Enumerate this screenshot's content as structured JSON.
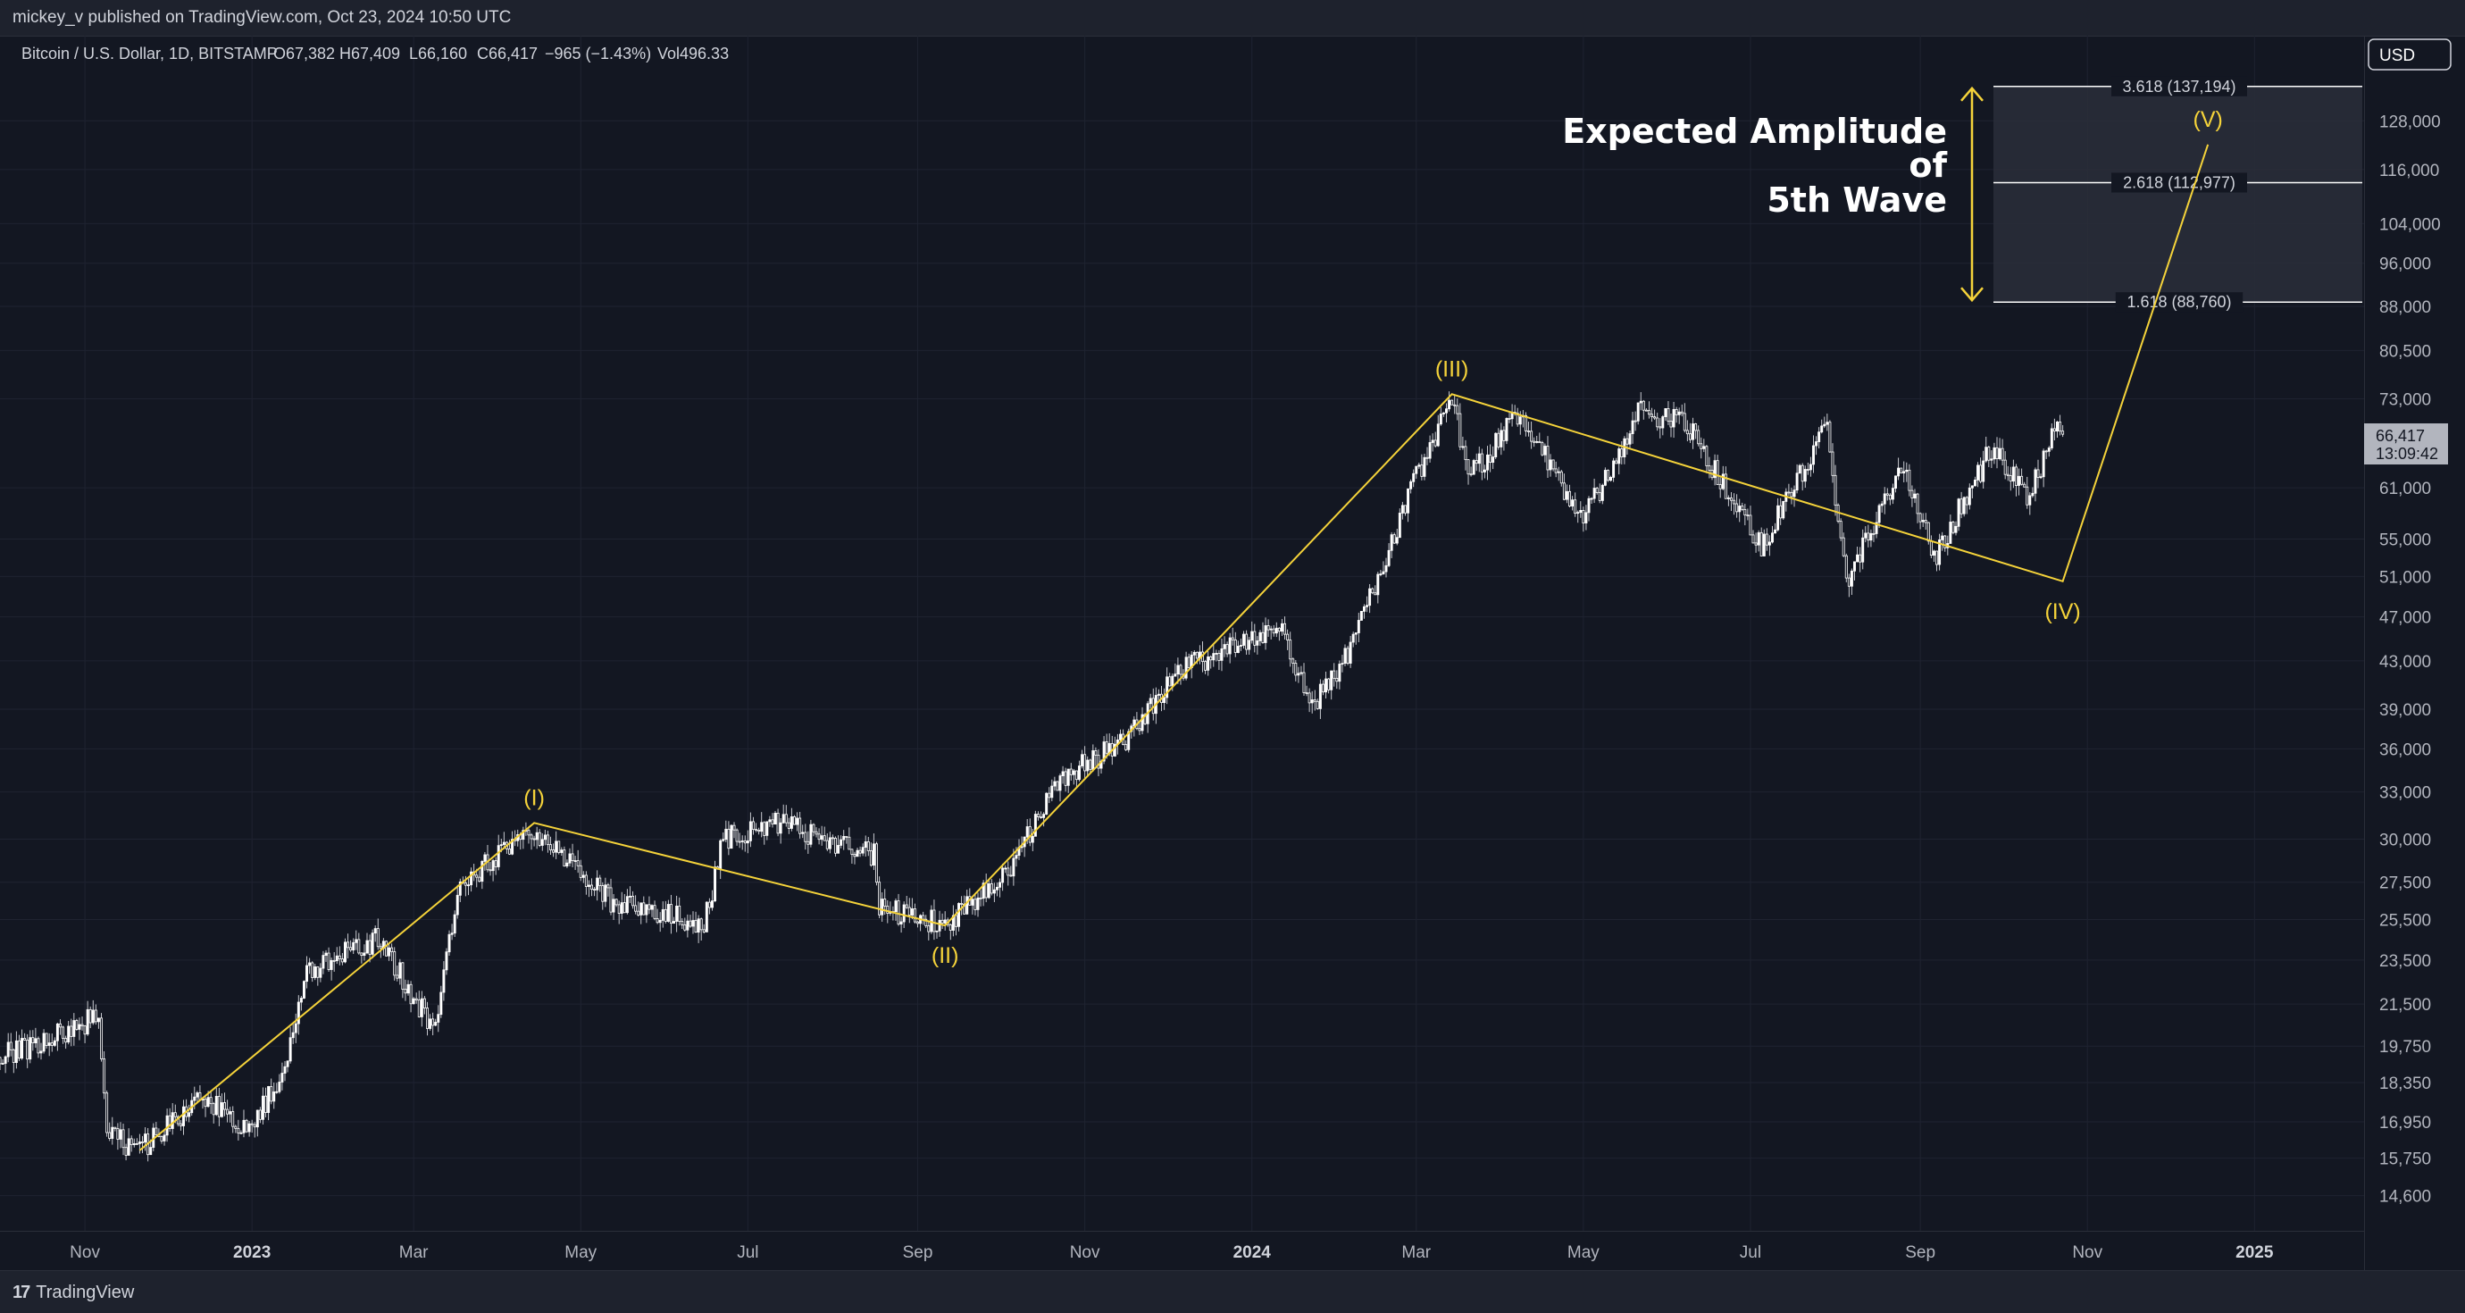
{
  "header": {
    "published_line": "mickey_v published on TradingView.com, Oct 23, 2024 10:50 UTC"
  },
  "legend": {
    "symbol": "Bitcoin / U.S. Dollar, 1D, BITSTAMP",
    "open": "O67,382",
    "high": "H67,409",
    "low": "L66,160",
    "close": "C66,417",
    "change": "−965 (−1.43%)",
    "volume": "Vol496.33"
  },
  "currency_label": "USD",
  "last_price": {
    "value": "66,417",
    "countdown": "13:09:42"
  },
  "annotation": {
    "line1": "Expected Amplitude",
    "line2": "of",
    "line3": "5th Wave"
  },
  "fib_levels": [
    {
      "label": "3.618 (137,194)",
      "price": 137194
    },
    {
      "label": "2.618 (112,977)",
      "price": 112977
    },
    {
      "label": "1.618 (88,760)",
      "price": 88760
    }
  ],
  "footer": {
    "brand": "TradingView"
  },
  "colors": {
    "background": "#131722",
    "panel": "#1e222d",
    "wave": "#f5d33a",
    "candle_up": "#ffffff",
    "candle_down": "#ffffff",
    "fib_fill": "#2a2e39"
  },
  "chart_data": {
    "type": "candlestick",
    "y_scale": "log",
    "ylim": [
      13600,
      152000
    ],
    "xlim": [
      "2022-10-01",
      "2025-02-10"
    ],
    "y_ticks": [
      "128,000",
      "116,000",
      "104,000",
      "96,000",
      "88,000",
      "80,500",
      "73,000",
      "61,000",
      "55,000",
      "51,000",
      "47,000",
      "43,000",
      "39,000",
      "36,000",
      "33,000",
      "30,000",
      "27,500",
      "25,500",
      "23,500",
      "21,500",
      "19,750",
      "18,350",
      "16,950",
      "15,750",
      "14,600"
    ],
    "y_tick_values": [
      128000,
      116000,
      104000,
      96000,
      88000,
      80500,
      73000,
      61000,
      55000,
      51000,
      47000,
      43000,
      39000,
      36000,
      33000,
      30000,
      27500,
      25500,
      23500,
      21500,
      19750,
      18350,
      16950,
      15750,
      14600
    ],
    "x_ticks": [
      {
        "label": "Nov",
        "date": "2022-11-01",
        "year": false
      },
      {
        "label": "2023",
        "date": "2023-01-01",
        "year": true
      },
      {
        "label": "Mar",
        "date": "2023-03-01",
        "year": false
      },
      {
        "label": "May",
        "date": "2023-05-01",
        "year": false
      },
      {
        "label": "Jul",
        "date": "2023-07-01",
        "year": false
      },
      {
        "label": "Sep",
        "date": "2023-09-01",
        "year": false
      },
      {
        "label": "Nov",
        "date": "2023-11-01",
        "year": false
      },
      {
        "label": "2024",
        "date": "2024-01-01",
        "year": true
      },
      {
        "label": "Mar",
        "date": "2024-03-01",
        "year": false
      },
      {
        "label": "May",
        "date": "2024-05-01",
        "year": false
      },
      {
        "label": "Jul",
        "date": "2024-07-01",
        "year": false
      },
      {
        "label": "Sep",
        "date": "2024-09-01",
        "year": false
      },
      {
        "label": "Nov",
        "date": "2024-11-01",
        "year": false
      },
      {
        "label": "2025",
        "date": "2025-01-01",
        "year": true
      }
    ],
    "price_path": [
      {
        "date": "2022-10-01",
        "price": 19300
      },
      {
        "date": "2022-10-25",
        "price": 20300
      },
      {
        "date": "2022-11-06",
        "price": 21000
      },
      {
        "date": "2022-11-09",
        "price": 16500
      },
      {
        "date": "2022-11-21",
        "price": 16000
      },
      {
        "date": "2022-12-14",
        "price": 17800
      },
      {
        "date": "2022-12-31",
        "price": 16600
      },
      {
        "date": "2023-01-13",
        "price": 19000
      },
      {
        "date": "2023-01-21",
        "price": 23000
      },
      {
        "date": "2023-02-16",
        "price": 24500
      },
      {
        "date": "2023-03-09",
        "price": 20300
      },
      {
        "date": "2023-03-14",
        "price": 24500
      },
      {
        "date": "2023-03-18",
        "price": 27500
      },
      {
        "date": "2023-04-14",
        "price": 30500
      },
      {
        "date": "2023-05-12",
        "price": 26500
      },
      {
        "date": "2023-06-15",
        "price": 25200
      },
      {
        "date": "2023-06-22",
        "price": 30000
      },
      {
        "date": "2023-07-13",
        "price": 31000
      },
      {
        "date": "2023-08-16",
        "price": 29000
      },
      {
        "date": "2023-08-18",
        "price": 26100
      },
      {
        "date": "2023-09-11",
        "price": 25200
      },
      {
        "date": "2023-10-01",
        "price": 27500
      },
      {
        "date": "2023-10-24",
        "price": 34000
      },
      {
        "date": "2023-11-15",
        "price": 36500
      },
      {
        "date": "2023-12-05",
        "price": 42000
      },
      {
        "date": "2024-01-11",
        "price": 46500
      },
      {
        "date": "2024-01-23",
        "price": 39000
      },
      {
        "date": "2024-02-08",
        "price": 45000
      },
      {
        "date": "2024-02-28",
        "price": 61000
      },
      {
        "date": "2024-03-14",
        "price": 73000
      },
      {
        "date": "2024-03-20",
        "price": 62000
      },
      {
        "date": "2024-04-08",
        "price": 71000
      },
      {
        "date": "2024-05-01",
        "price": 57000
      },
      {
        "date": "2024-05-21",
        "price": 71000
      },
      {
        "date": "2024-06-07",
        "price": 70000
      },
      {
        "date": "2024-07-05",
        "price": 54000
      },
      {
        "date": "2024-07-29",
        "price": 69000
      },
      {
        "date": "2024-08-05",
        "price": 50000
      },
      {
        "date": "2024-08-25",
        "price": 64000
      },
      {
        "date": "2024-09-06",
        "price": 53000
      },
      {
        "date": "2024-09-27",
        "price": 66000
      },
      {
        "date": "2024-10-10",
        "price": 60000
      },
      {
        "date": "2024-10-21",
        "price": 69000
      },
      {
        "date": "2024-10-23",
        "price": 66417
      }
    ],
    "waves": [
      {
        "label": "(I)",
        "date": "2023-04-14",
        "price": 31000,
        "label_pos": "above"
      },
      {
        "label": "(II)",
        "date": "2023-09-11",
        "price": 25200,
        "label_pos": "below"
      },
      {
        "label": "(III)",
        "date": "2024-03-14",
        "price": 73700,
        "label_pos": "above"
      },
      {
        "label": "(IV)",
        "date": "2024-10-23",
        "price": 50500,
        "label_pos": "below"
      },
      {
        "label": "(V)",
        "date": "2024-12-15",
        "price": 122000,
        "label_pos": "above"
      }
    ],
    "wave_start": {
      "date": "2022-11-21",
      "price": 16000
    }
  }
}
